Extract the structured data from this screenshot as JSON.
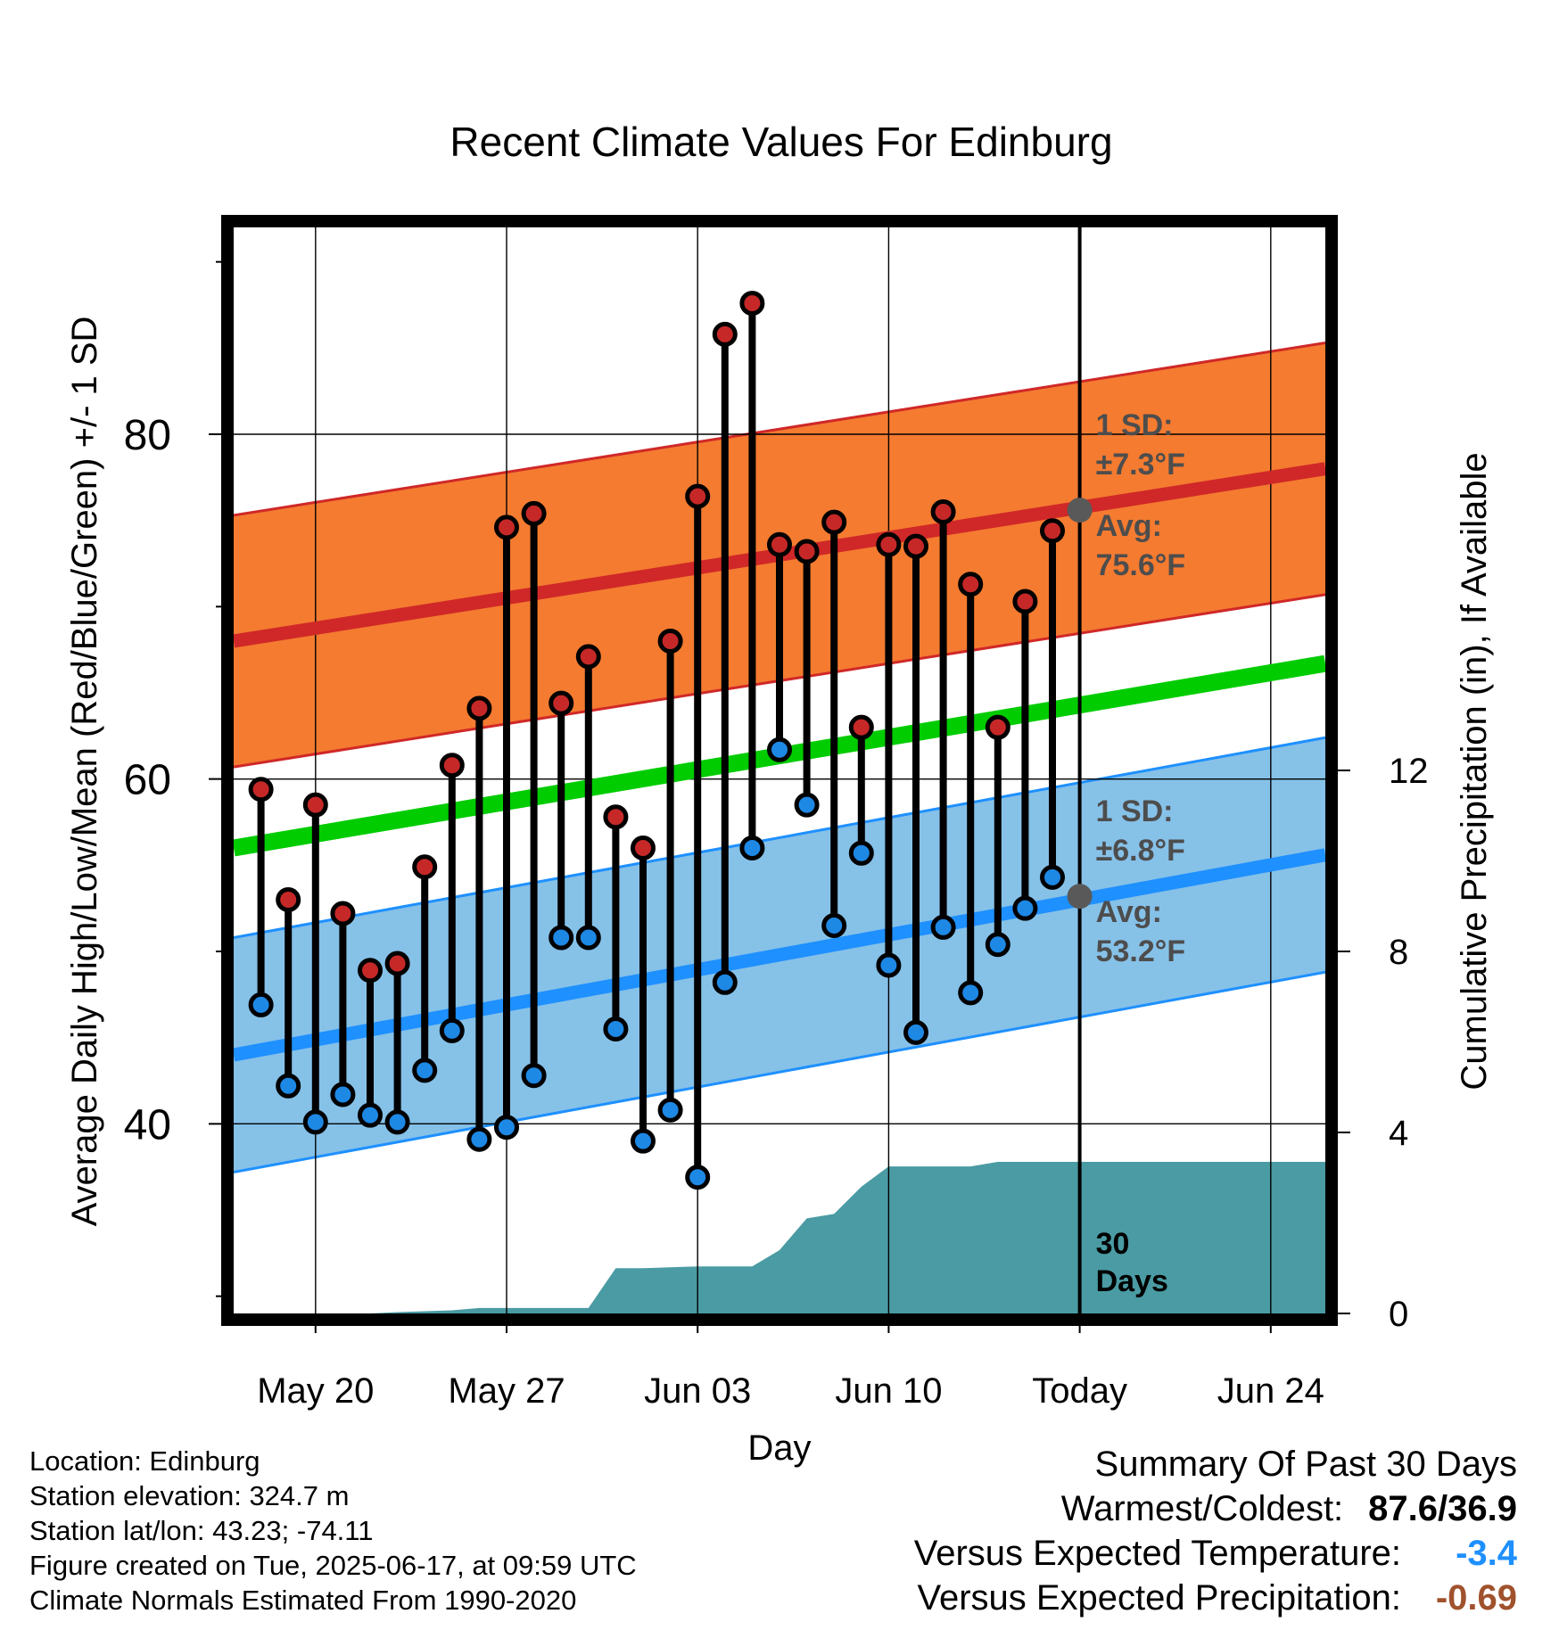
{
  "chart_data": {
    "type": "line",
    "title": "Recent Climate Values For Edinburg",
    "xlabel": "Day",
    "ylabel_left": "Average Daily High/Low/Mean (Red/Blue/Green) +/- 1 SD",
    "ylabel_right": "Cumulative Precipitation (in), If Available",
    "x_ticks": [
      "May 20",
      "May 27",
      "Jun 03",
      "Jun 10",
      "Today",
      "Jun 24"
    ],
    "x_tick_day_index": [
      0,
      7,
      14,
      21,
      28,
      35
    ],
    "xlim_day_index": [
      -3,
      37
    ],
    "y_left_ticks": [
      "40",
      "60",
      "80"
    ],
    "y_left_tick_values": [
      40,
      60,
      80
    ],
    "ylim_left": [
      29,
      92
    ],
    "y_right_ticks": [
      "0",
      "4",
      "8",
      "12"
    ],
    "y_right_tick_values": [
      0,
      4,
      8,
      12
    ],
    "ylim_right": [
      0,
      24
    ],
    "grid": true,
    "daily_observations": {
      "day_index": [
        -2,
        -1,
        0,
        1,
        2,
        3,
        4,
        5,
        6,
        7,
        8,
        9,
        10,
        11,
        12,
        13,
        14,
        15,
        16,
        17,
        18,
        19,
        20,
        21,
        22,
        23,
        24,
        25,
        26,
        27
      ],
      "high": [
        59.4,
        53.0,
        58.5,
        52.2,
        48.9,
        49.3,
        54.9,
        60.8,
        64.1,
        74.6,
        75.4,
        64.4,
        67.1,
        57.8,
        56.0,
        68.0,
        76.4,
        85.8,
        87.6,
        73.6,
        73.2,
        74.9,
        63.0,
        73.6,
        73.5,
        75.5,
        71.3,
        63.0,
        70.3,
        74.4
      ],
      "low": [
        46.9,
        42.2,
        40.1,
        41.7,
        40.5,
        40.1,
        43.1,
        45.4,
        39.1,
        39.8,
        42.8,
        50.8,
        50.8,
        45.5,
        39.0,
        40.8,
        36.9,
        48.2,
        56.0,
        61.7,
        58.5,
        51.5,
        55.7,
        49.2,
        45.3,
        51.4,
        47.6,
        50.4,
        52.5,
        54.3
      ]
    },
    "normals": {
      "day_index": [
        -3,
        37
      ],
      "mean": [
        56.0,
        66.7
      ],
      "high_avg": [
        68.0,
        78.0
      ],
      "high_sd": 7.3,
      "low_avg": [
        44.0,
        55.6
      ],
      "low_sd": 6.8
    },
    "cumulative_precipitation": {
      "day_index": [
        -3,
        -2,
        2,
        3,
        5,
        6,
        7,
        8,
        9,
        10,
        11,
        12,
        13,
        14,
        15,
        16,
        17,
        18,
        19,
        20,
        21,
        22,
        23,
        24,
        25,
        26,
        27,
        28,
        37
      ],
      "inches": [
        0,
        0,
        0,
        0.03,
        0.07,
        0.12,
        0.12,
        0.12,
        0.12,
        0.12,
        1.0,
        1.0,
        1.02,
        1.04,
        1.04,
        1.04,
        1.4,
        2.1,
        2.2,
        2.8,
        3.25,
        3.25,
        3.25,
        3.25,
        3.35,
        3.35,
        3.35,
        3.35,
        3.35
      ]
    },
    "annotations": {
      "high_sd_label": "1 SD:",
      "high_sd_value": "±7.3°F",
      "high_avg_label": "Avg:",
      "high_avg_value": "75.6°F",
      "high_avg_today": 75.6,
      "low_sd_label": "1 SD:",
      "low_sd_value": "±6.8°F",
      "low_avg_label": "Avg:",
      "low_avg_value": "53.2°F",
      "low_avg_today": 53.2,
      "period_line1": "30",
      "period_line2": "Days"
    },
    "colors": {
      "high_band": "#f47b30",
      "high_line": "#d02828",
      "low_band": "#86c1e8",
      "low_line": "#1e90ff",
      "mean_line": "#00cc00",
      "precip_fill": "#4a9ba3",
      "high_marker": "#c62828",
      "low_marker": "#1e88e5",
      "annotation_text": "#4d4d4d"
    }
  },
  "info": {
    "location": "Location: Edinburg",
    "elevation": "Station elevation: 324.7 m",
    "latlon": "Station lat/lon: 43.23; -74.11",
    "created": "Figure created on Tue, 2025-06-17, at 09:59 UTC",
    "normals": "Climate Normals Estimated From 1990-2020"
  },
  "summary": {
    "title": "Summary Of Past 30 Days",
    "warmest_label": "Warmest/Coldest:",
    "warmest_value": "87.6/36.9",
    "temp_label": "Versus Expected Temperature:",
    "temp_value": "-3.4",
    "precip_label": "Versus Expected Precipitation:",
    "precip_value": "-0.69"
  }
}
